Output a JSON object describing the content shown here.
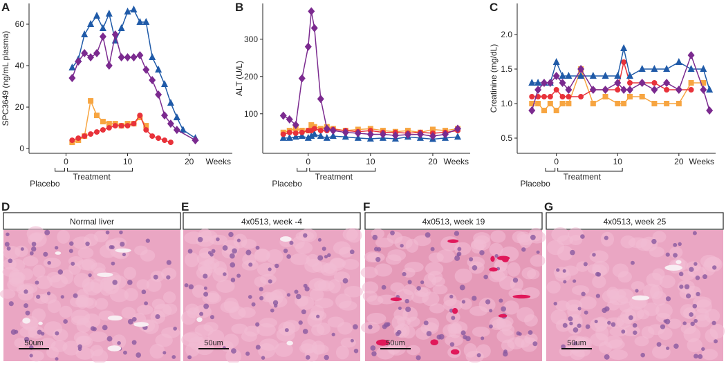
{
  "chart_data": [
    {
      "type": "line",
      "label": "A",
      "ylabel": "SPC3649 (ng/mL plasma)",
      "x_unit": "Weeks",
      "xlim": [
        -6,
        27
      ],
      "xticks": [
        0,
        10,
        20
      ],
      "ylim": [
        -2.3,
        70
      ],
      "yticks": [
        0,
        20,
        40,
        60
      ],
      "brackets": [
        {
          "label": "Placebo",
          "x": [
            -2,
            0
          ]
        },
        {
          "label": "Treatment",
          "x": [
            0,
            11
          ]
        }
      ],
      "series": [
        {
          "color": "#1f5aa8",
          "marker": "triangle",
          "x": [
            1,
            2,
            3,
            4,
            5,
            6,
            7,
            8,
            9,
            10,
            11,
            12,
            13,
            14,
            15,
            16,
            17,
            18,
            19,
            21
          ],
          "values": [
            39,
            43,
            55,
            60,
            64,
            58,
            65,
            52,
            58,
            66,
            67,
            61,
            61,
            44,
            38,
            31,
            22,
            15,
            9,
            5
          ]
        },
        {
          "color": "#7b2a8f",
          "marker": "diamond",
          "x": [
            1,
            2,
            3,
            4,
            5,
            6,
            7,
            8,
            9,
            10,
            11,
            12,
            13,
            14,
            15,
            16,
            17,
            18,
            21
          ],
          "values": [
            34,
            42,
            46,
            44,
            46,
            54,
            40,
            55,
            44,
            44,
            44,
            45,
            38,
            33,
            26,
            16,
            12,
            9,
            4
          ]
        },
        {
          "color": "#f7a541",
          "marker": "square",
          "x": [
            1,
            2,
            3,
            4,
            5,
            6,
            7,
            8,
            9,
            10,
            11,
            12,
            13
          ],
          "values": [
            3,
            4,
            6,
            23,
            16,
            13,
            12,
            12,
            11,
            12,
            12,
            15,
            11
          ]
        },
        {
          "color": "#e8323a",
          "marker": "circle",
          "x": [
            1,
            2,
            3,
            4,
            5,
            6,
            7,
            8,
            9,
            10,
            11,
            12,
            13,
            14,
            15,
            16,
            17
          ],
          "values": [
            4,
            5,
            6,
            7,
            8,
            9,
            10,
            11,
            11,
            11,
            12,
            16,
            9,
            6,
            5,
            4,
            3
          ]
        }
      ]
    },
    {
      "type": "line",
      "label": "B",
      "ylabel": "ALT (U/L)",
      "x_unit": "Weeks",
      "xlim": [
        -7.3,
        26
      ],
      "xticks": [
        0,
        10,
        20
      ],
      "ylim": [
        -6,
        396
      ],
      "yticks": [
        100,
        200,
        300
      ],
      "brackets": [
        {
          "label": "Placebo",
          "x": [
            -2,
            0
          ]
        },
        {
          "label": "Treatment",
          "x": [
            0,
            11
          ]
        }
      ],
      "series": [
        {
          "color": "#1f5aa8",
          "marker": "triangle",
          "x": [
            -4,
            -3,
            -2,
            -1,
            0,
            0.5,
            1,
            2,
            3,
            4,
            6,
            8,
            10,
            12,
            14,
            16,
            18,
            20,
            22,
            24
          ],
          "values": [
            35,
            35,
            38,
            40,
            35,
            40,
            45,
            40,
            35,
            40,
            38,
            35,
            33,
            35,
            33,
            38,
            35,
            32,
            35,
            38
          ]
        },
        {
          "color": "#f7a541",
          "marker": "square",
          "x": [
            -4,
            -3,
            -2,
            -1,
            0,
            0.5,
            1,
            2,
            3,
            4,
            6,
            8,
            10,
            12,
            14,
            16,
            18,
            20,
            22,
            24
          ],
          "values": [
            50,
            55,
            60,
            55,
            55,
            70,
            65,
            60,
            65,
            60,
            55,
            58,
            60,
            55,
            52,
            55,
            50,
            58,
            55,
            60
          ]
        },
        {
          "color": "#e8323a",
          "marker": "circle",
          "x": [
            -4,
            -3,
            -2,
            -1,
            0,
            0.5,
            1,
            2,
            3,
            4,
            6,
            8,
            10,
            12,
            14,
            16,
            18,
            20,
            22,
            24
          ],
          "values": [
            45,
            50,
            48,
            50,
            55,
            55,
            60,
            55,
            55,
            58,
            55,
            52,
            55,
            50,
            50,
            48,
            50,
            48,
            50,
            55
          ]
        },
        {
          "color": "#7b2a8f",
          "marker": "diamond",
          "x": [
            -4,
            -3,
            -2,
            -1,
            0,
            0.5,
            1,
            2,
            3,
            4,
            6,
            8,
            10,
            12,
            14,
            16,
            18,
            20,
            22,
            24
          ],
          "values": [
            95,
            85,
            70,
            195,
            280,
            375,
            330,
            140,
            60,
            55,
            50,
            48,
            45,
            45,
            42,
            44,
            45,
            40,
            45,
            60
          ]
        }
      ]
    },
    {
      "type": "line",
      "label": "C",
      "ylabel": "Creatinine (mg/dL)",
      "x_unit": "Weeks",
      "xlim": [
        -6.4,
        26
      ],
      "xticks": [
        0,
        10,
        20
      ],
      "ylim": [
        0.28,
        2.45
      ],
      "yticks": [
        0.5,
        {
          "value": 1,
          "label": "1.0"
        },
        1.5,
        {
          "value": 2,
          "label": "2.0"
        }
      ],
      "brackets": [
        {
          "label": "Placebo",
          "x": [
            -2,
            0
          ]
        },
        {
          "label": "Treatment",
          "x": [
            0,
            11
          ]
        }
      ],
      "series": [
        {
          "color": "#f7a541",
          "marker": "square",
          "x": [
            -4,
            -3,
            -2,
            -1,
            0,
            1,
            2,
            4,
            6,
            8,
            10,
            11,
            12,
            14,
            16,
            18,
            20,
            22,
            24
          ],
          "values": [
            1.0,
            1.0,
            0.9,
            1.0,
            0.9,
            1.0,
            1.0,
            1.5,
            1.0,
            1.1,
            1.0,
            1.0,
            1.1,
            1.1,
            1.0,
            1.0,
            1.0,
            1.3,
            1.3
          ]
        },
        {
          "color": "#e8323a",
          "marker": "circle",
          "x": [
            -4,
            -3,
            -2,
            -1,
            0,
            1,
            2,
            4,
            6,
            8,
            10,
            11,
            12,
            14,
            16,
            18,
            20,
            22
          ],
          "values": [
            1.1,
            1.1,
            1.1,
            1.1,
            1.2,
            1.1,
            1.1,
            1.1,
            1.2,
            1.2,
            1.2,
            1.6,
            1.3,
            1.3,
            1.3,
            1.2,
            1.2,
            1.2
          ]
        },
        {
          "color": "#1f5aa8",
          "marker": "triangle",
          "x": [
            -4,
            -3,
            -2,
            -1,
            0,
            1,
            2,
            4,
            6,
            8,
            10,
            11,
            12,
            14,
            16,
            18,
            20,
            22,
            24,
            25
          ],
          "values": [
            1.3,
            1.3,
            1.3,
            1.3,
            1.6,
            1.4,
            1.4,
            1.4,
            1.4,
            1.4,
            1.4,
            1.8,
            1.4,
            1.5,
            1.5,
            1.5,
            1.6,
            1.5,
            1.5,
            1.2
          ]
        },
        {
          "color": "#7b2a8f",
          "marker": "diamond",
          "x": [
            -4,
            -3,
            -2,
            -1,
            0,
            1,
            2,
            4,
            6,
            8,
            10,
            11,
            12,
            14,
            16,
            18,
            20,
            22,
            24,
            25
          ],
          "values": [
            0.9,
            1.2,
            1.3,
            1.3,
            1.4,
            1.3,
            1.2,
            1.5,
            1.2,
            1.2,
            1.3,
            1.2,
            1.2,
            1.3,
            1.2,
            1.3,
            1.2,
            1.7,
            1.2,
            0.9
          ]
        }
      ]
    }
  ],
  "images": [
    {
      "label": "D",
      "title": "Normal liver",
      "scale": "50um"
    },
    {
      "label": "E",
      "title": "4x0513, week -4",
      "scale": "50um"
    },
    {
      "label": "F",
      "title": "4x0513, week 19",
      "scale": "50um"
    },
    {
      "label": "G",
      "title": "4x0513, week 25",
      "scale": "50um"
    }
  ]
}
